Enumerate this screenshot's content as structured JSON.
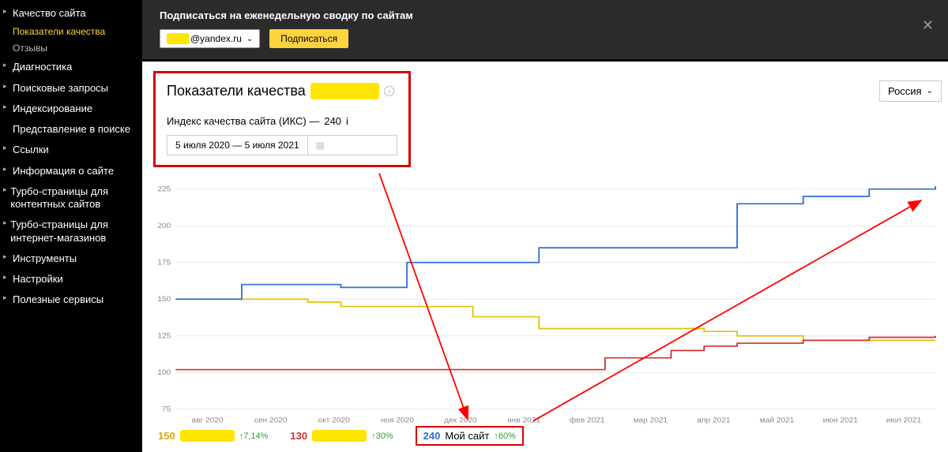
{
  "sidebar": {
    "items": [
      {
        "label": "Качество сайта",
        "expandable": true,
        "sub": [
          {
            "label": "Показатели качества",
            "color": "yellow"
          },
          {
            "label": "Отзывы",
            "color": "grey"
          }
        ]
      },
      {
        "label": "Диагностика",
        "expandable": true
      },
      {
        "label": "Поисковые запросы",
        "expandable": true
      },
      {
        "label": "Индексирование",
        "expandable": true
      },
      {
        "label": "Представление в поиске",
        "expandable": false,
        "indent": true
      },
      {
        "label": "Ссылки",
        "expandable": true
      },
      {
        "label": "Информация о сайте",
        "expandable": true
      },
      {
        "label": "Турбо-страницы для контентных сайтов",
        "expandable": true
      },
      {
        "label": "Турбо-страницы для интернет-магазинов",
        "expandable": true
      },
      {
        "label": "Инструменты",
        "expandable": true
      },
      {
        "label": "Настройки",
        "expandable": true
      },
      {
        "label": "Полезные сервисы",
        "expandable": true
      }
    ]
  },
  "topbar": {
    "prompt": "Подписаться на еженедельную сводку по сайтам",
    "email_masked": "xxxx",
    "email_domain": "@yandex.ru",
    "subscribe": "Подписаться"
  },
  "header": {
    "title": "Показатели качества",
    "title_masked": "xxxxxxxxx",
    "sqi_label": "Индекс качества сайта (ИКС) — ",
    "sqi_value": "240",
    "date_range": "5 июля 2020 — 5 июля 2021"
  },
  "country": "Россия",
  "chart": {
    "y_ticks": [
      75,
      100,
      125,
      150,
      175,
      200,
      225
    ],
    "x_labels": [
      "авг 2020",
      "сен 2020",
      "окт 2020",
      "ноя 2020",
      "дек 2020",
      "янв 2021",
      "фев 2021",
      "мар 2021",
      "апр 2021",
      "май 2021",
      "июн 2021",
      "июл 2021"
    ],
    "colors": {
      "grid": "#e8e8e8",
      "axis_label": "#888",
      "blue": "#2f6fd0",
      "yellow": "#e2c100",
      "red": "#d03030",
      "bg": "#ffffff"
    },
    "series_blue": [
      150,
      150,
      160,
      160,
      160,
      158,
      158,
      175,
      175,
      175,
      175,
      185,
      185,
      185,
      185,
      185,
      185,
      215,
      215,
      220,
      220,
      225,
      225,
      230
    ],
    "series_yellow": [
      150,
      150,
      150,
      150,
      148,
      145,
      145,
      145,
      145,
      138,
      138,
      130,
      130,
      130,
      130,
      130,
      128,
      125,
      125,
      122,
      122,
      122,
      122,
      122
    ],
    "series_red": [
      102,
      102,
      102,
      102,
      102,
      102,
      102,
      102,
      102,
      102,
      102,
      102,
      102,
      110,
      110,
      115,
      118,
      120,
      120,
      122,
      122,
      124,
      124,
      125
    ]
  },
  "legend": {
    "items": [
      {
        "value": "150",
        "value_color": "#e2a500",
        "name_masked": "xxxxxxxxxx",
        "delta": "7,14%",
        "delta_arrow": "↑"
      },
      {
        "value": "130",
        "value_color": "#d03030",
        "name_masked": "xxxxxxxxxx",
        "delta": "30%",
        "delta_arrow": "↑"
      },
      {
        "value": "240",
        "value_color": "#2f6fd0",
        "name": "Мой сайт",
        "delta": "60%",
        "delta_arrow": "↑",
        "boxed": true
      }
    ]
  },
  "annotations": {
    "header_box_color": "#d60000",
    "arrows_color": "#ff0000"
  }
}
